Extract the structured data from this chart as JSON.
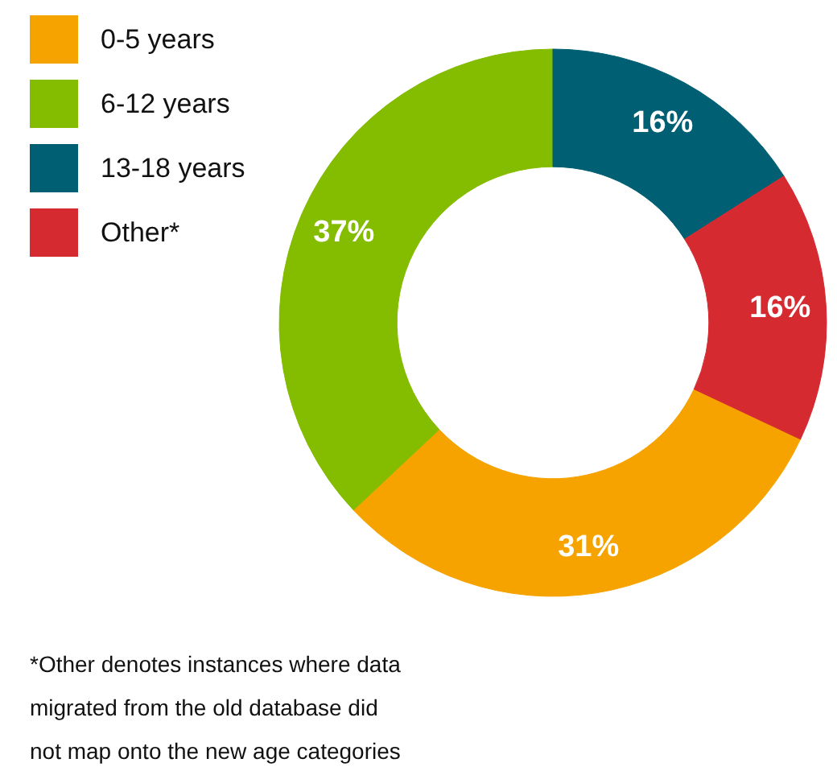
{
  "chart_data": {
    "type": "donut",
    "categories": [
      "0-5 years",
      "6-12 years",
      "13-18 years",
      "Other*"
    ],
    "values": [
      31,
      37,
      16,
      16
    ],
    "colors": [
      "#f6a300",
      "#84bc00",
      "#005f72",
      "#d62a31"
    ],
    "value_labels": [
      "31%",
      "37%",
      "16%",
      "16%"
    ],
    "legend": "top left",
    "annotations": [
      "*Other denotes instances where data\nmigrated from the old database did\nnot map onto the new age categories"
    ]
  }
}
